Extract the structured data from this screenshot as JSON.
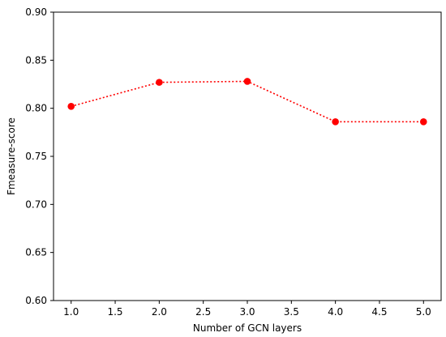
{
  "chart_data": {
    "type": "line",
    "title": "",
    "xlabel": "Number of GCN layers",
    "ylabel": "Fmeasure-score",
    "xlim": [
      0.8,
      5.2
    ],
    "ylim": [
      0.6,
      0.9
    ],
    "xticks": [
      1.0,
      1.5,
      2.0,
      2.5,
      3.0,
      3.5,
      4.0,
      4.5,
      5.0
    ],
    "xtick_labels": [
      "1.0",
      "1.5",
      "2.0",
      "2.5",
      "3.0",
      "3.5",
      "4.0",
      "4.5",
      "5.0"
    ],
    "yticks": [
      0.6,
      0.65,
      0.7,
      0.75,
      0.8,
      0.85,
      0.9
    ],
    "ytick_labels": [
      "0.60",
      "0.65",
      "0.70",
      "0.75",
      "0.80",
      "0.85",
      "0.90"
    ],
    "grid": false,
    "legend": "none",
    "series": [
      {
        "x": [
          1.0,
          2.0,
          3.0,
          4.0,
          5.0
        ],
        "values": [
          0.802,
          0.827,
          0.828,
          0.786,
          0.786
        ],
        "color": "#ff0000",
        "line_style": "dotted",
        "marker": "circle"
      }
    ]
  }
}
